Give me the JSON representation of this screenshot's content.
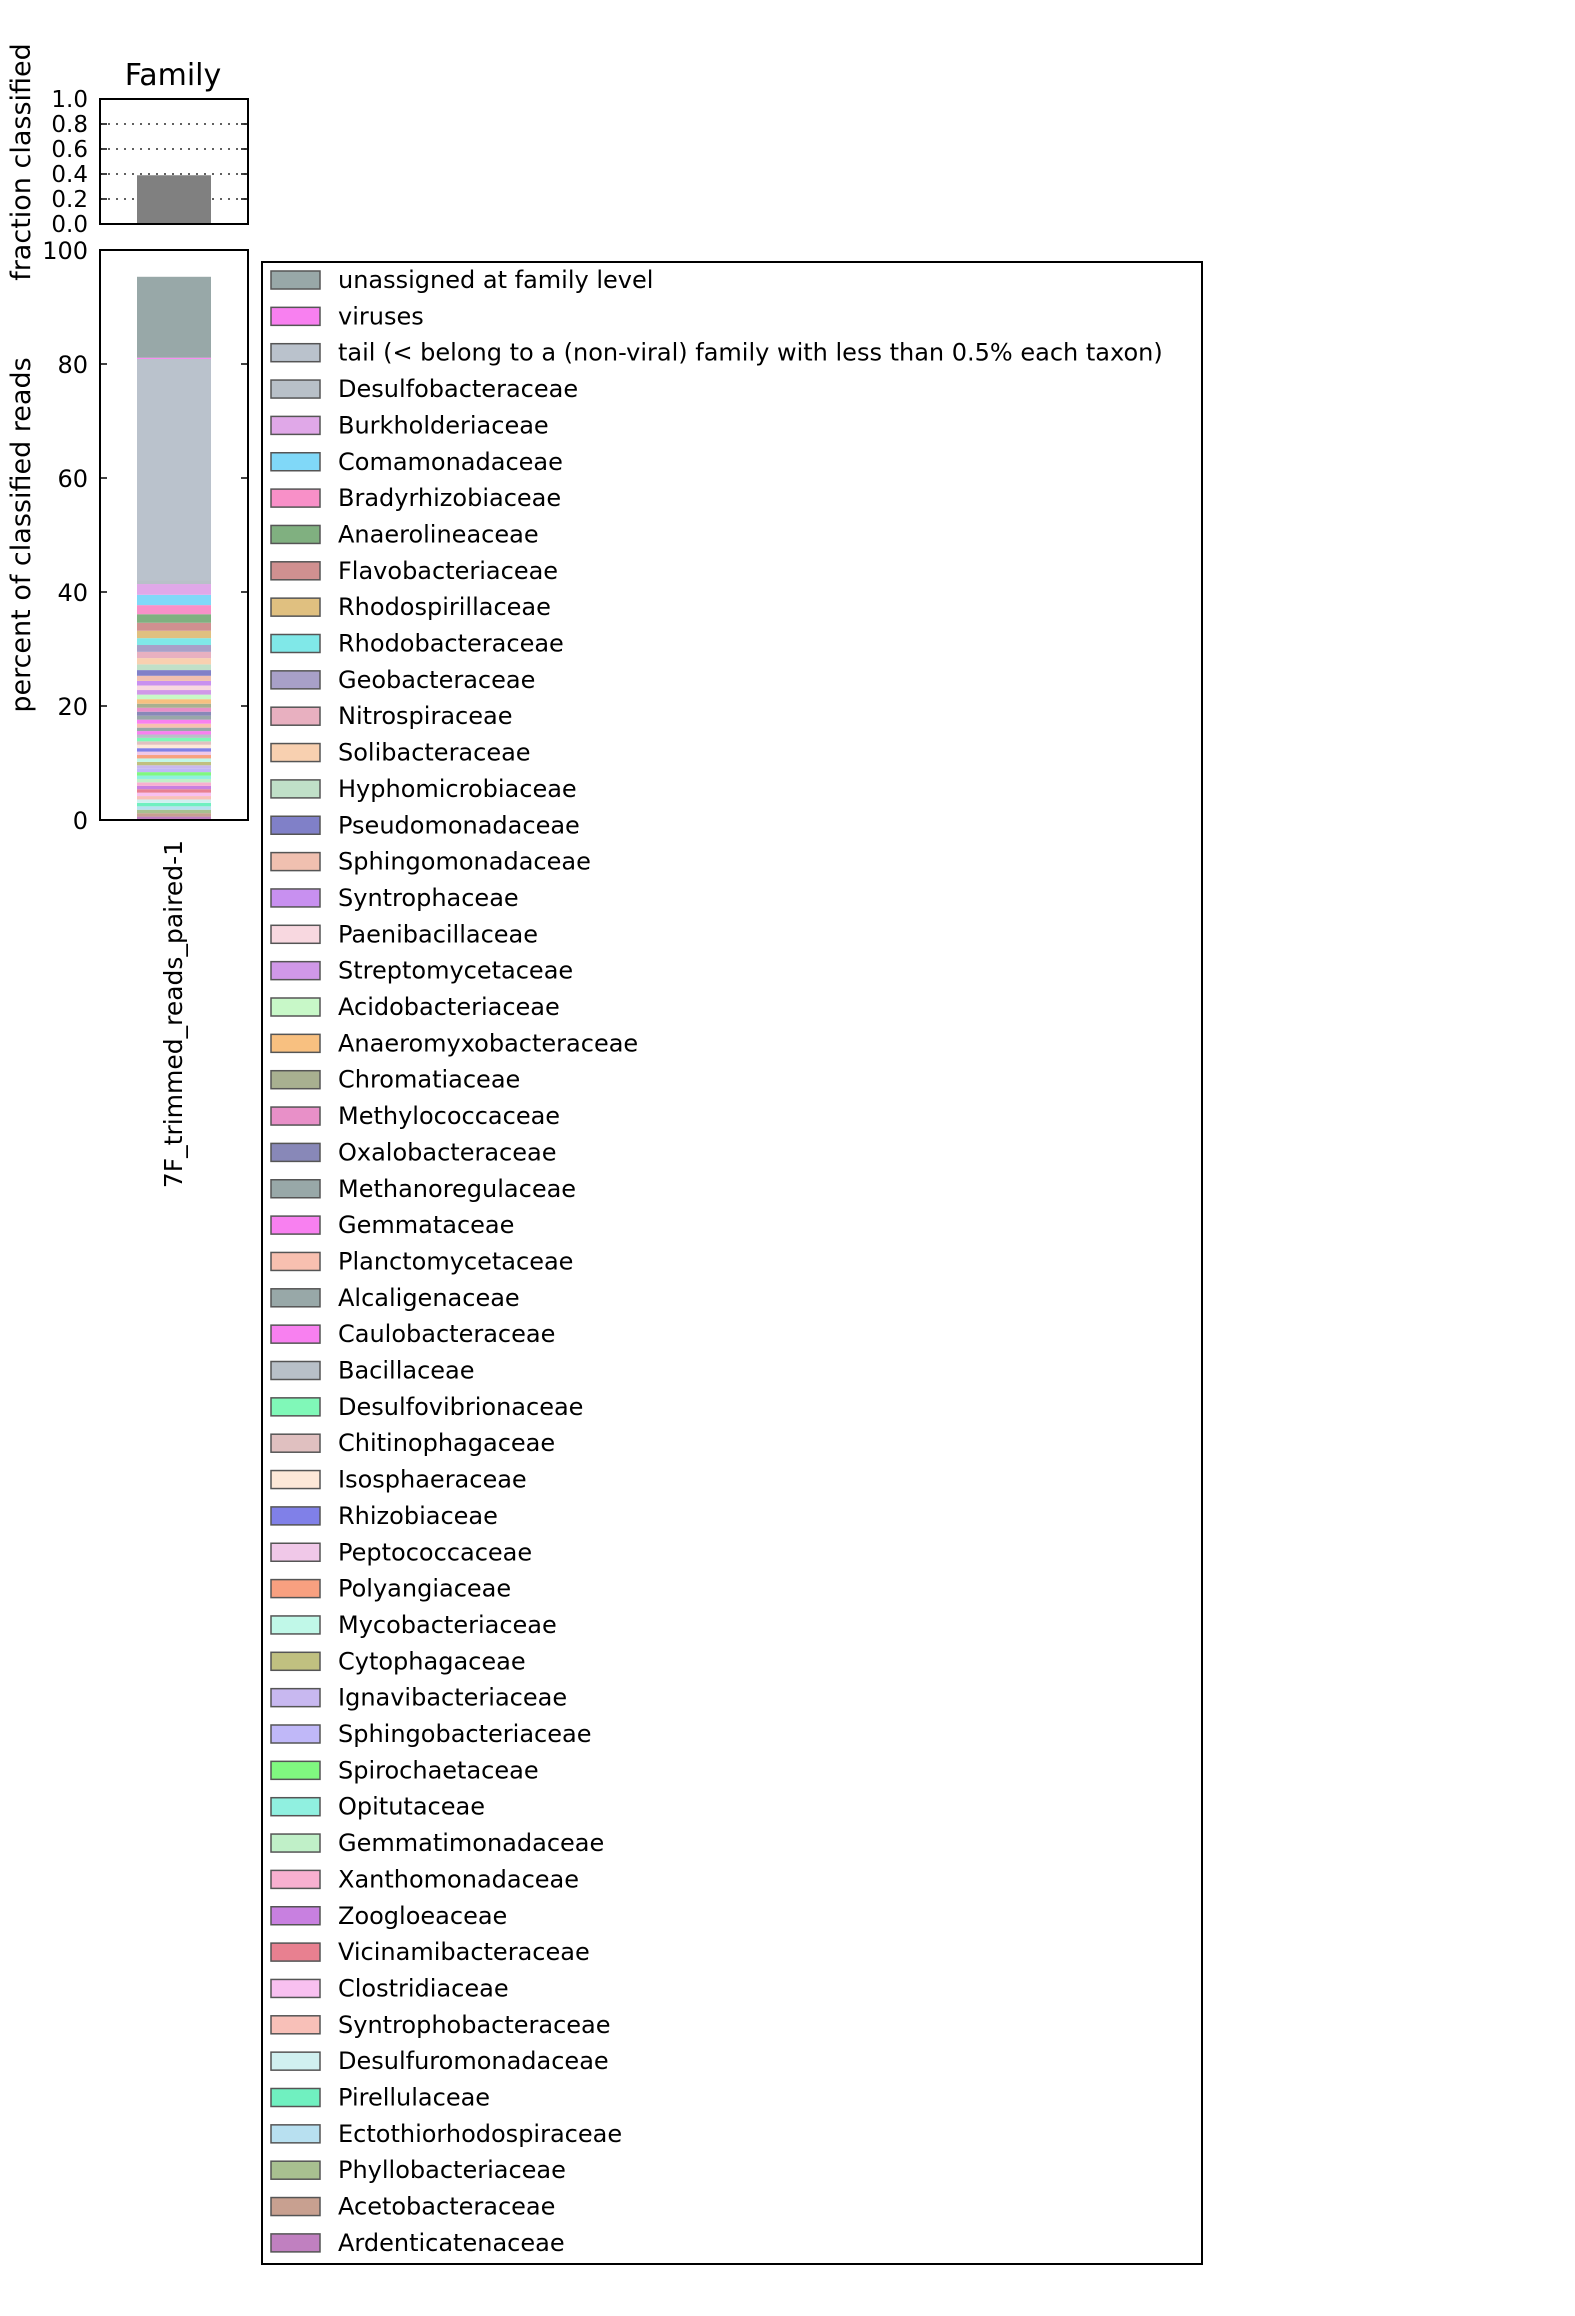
{
  "chart_data": [
    {
      "type": "bar",
      "title": "Family",
      "ylabel": "fraction classified",
      "ylim": [
        0.0,
        1.0
      ],
      "yticks": [
        "0.0",
        "0.2",
        "0.4",
        "0.6",
        "0.8",
        "1.0"
      ],
      "grid": true,
      "categories": [
        "7F_trimmed_reads_paired-1"
      ],
      "values": [
        0.39
      ],
      "bar_color": "#808080"
    },
    {
      "type": "bar",
      "stacked": true,
      "ylabel": "percent of classified reads",
      "ylim": [
        0,
        100
      ],
      "yticks": [
        "0",
        "20",
        "40",
        "60",
        "80",
        "100"
      ],
      "categories": [
        "7F_trimmed_reads_paired-1"
      ],
      "legend_position": "right",
      "series": [
        {
          "name": "Ardenticatenaceae",
          "color": "#c080c0",
          "values": [
            0.6
          ]
        },
        {
          "name": "Acetobacteraceae",
          "color": "#c8a090",
          "values": [
            0.6
          ]
        },
        {
          "name": "Phyllobacteriaceae",
          "color": "#a8c090",
          "values": [
            0.6
          ]
        },
        {
          "name": "Ectothiorhodospiraceae",
          "color": "#b8e0f0",
          "values": [
            0.6
          ]
        },
        {
          "name": "Pirellulaceae",
          "color": "#70f0c0",
          "values": [
            0.6
          ]
        },
        {
          "name": "Desulfuromonadaceae",
          "color": "#d0f0f0",
          "values": [
            0.6
          ]
        },
        {
          "name": "Syntrophobacteraceae",
          "color": "#f8c0b8",
          "values": [
            0.6
          ]
        },
        {
          "name": "Clostridiaceae",
          "color": "#f8c0f0",
          "values": [
            0.6
          ]
        },
        {
          "name": "Vicinamibacteraceae",
          "color": "#e88090",
          "values": [
            0.6
          ]
        },
        {
          "name": "Zoogloeaceae",
          "color": "#c880e0",
          "values": [
            0.6
          ]
        },
        {
          "name": "Xanthomonadaceae",
          "color": "#f8b0d0",
          "values": [
            0.6
          ]
        },
        {
          "name": "Gemmatimonadaceae",
          "color": "#c0f0c8",
          "values": [
            0.6
          ]
        },
        {
          "name": "Opitutaceae",
          "color": "#90f0e0",
          "values": [
            0.6
          ]
        },
        {
          "name": "Spirochaetaceae",
          "color": "#80f880",
          "values": [
            0.6
          ]
        },
        {
          "name": "Sphingobacteriaceae",
          "color": "#c0b8f8",
          "values": [
            0.6
          ]
        },
        {
          "name": "Ignavibacteriaceae",
          "color": "#c8b8f0",
          "values": [
            0.6
          ]
        },
        {
          "name": "Cytophagaceae",
          "color": "#c0c080",
          "values": [
            0.6
          ]
        },
        {
          "name": "Mycobacteriaceae",
          "color": "#c0f8e8",
          "values": [
            0.6
          ]
        },
        {
          "name": "Polyangiaceae",
          "color": "#f8a080",
          "values": [
            0.6
          ]
        },
        {
          "name": "Peptococcaceae",
          "color": "#f0c8e8",
          "values": [
            0.6
          ]
        },
        {
          "name": "Rhizobiaceae",
          "color": "#8080e8",
          "values": [
            0.6
          ]
        },
        {
          "name": "Isosphaeraceae",
          "color": "#fde8d8",
          "values": [
            0.6
          ]
        },
        {
          "name": "Chitinophagaceae",
          "color": "#e0c0c0",
          "values": [
            0.6
          ]
        },
        {
          "name": "Desulfovibrionaceae",
          "color": "#80f8b8",
          "values": [
            0.6
          ]
        },
        {
          "name": "Bacillaceae",
          "color": "#b8c0c8",
          "values": [
            0.6
          ]
        },
        {
          "name": "Caulobacteraceae",
          "color": "#f880f0",
          "values": [
            0.6
          ]
        },
        {
          "name": "Alcaligenaceae",
          "color": "#98a8a8",
          "values": [
            0.6
          ]
        },
        {
          "name": "Planctomycetaceae",
          "color": "#f8c0b0",
          "values": [
            0.7
          ]
        },
        {
          "name": "Gemmataceae",
          "color": "#f880f0",
          "values": [
            0.7
          ]
        },
        {
          "name": "Methanoregulaceae",
          "color": "#98a8a8",
          "values": [
            0.7
          ]
        },
        {
          "name": "Oxalobacteraceae",
          "color": "#8888b8",
          "values": [
            0.7
          ]
        },
        {
          "name": "Methylococcaceae",
          "color": "#e890c8",
          "values": [
            0.7
          ]
        },
        {
          "name": "Chromatiaceae",
          "color": "#a8b090",
          "values": [
            0.7
          ]
        },
        {
          "name": "Anaeromyxobacteraceae",
          "color": "#f8c080",
          "values": [
            0.8
          ]
        },
        {
          "name": "Acidobacteriaceae",
          "color": "#c8f8c8",
          "values": [
            0.8
          ]
        },
        {
          "name": "Streptomycetaceae",
          "color": "#d098e8",
          "values": [
            0.8
          ]
        },
        {
          "name": "Paenibacillaceae",
          "color": "#f8d8e0",
          "values": [
            0.8
          ]
        },
        {
          "name": "Syntrophaceae",
          "color": "#c890f0",
          "values": [
            0.8
          ]
        },
        {
          "name": "Sphingomonadaceae",
          "color": "#f0c0b0",
          "values": [
            0.9
          ]
        },
        {
          "name": "Pseudomonadaceae",
          "color": "#8080c8",
          "values": [
            1.0
          ]
        },
        {
          "name": "Hyphomicrobiaceae",
          "color": "#c0e0c8",
          "values": [
            1.0
          ]
        },
        {
          "name": "Solibacteraceae",
          "color": "#f8d0b0",
          "values": [
            1.1
          ]
        },
        {
          "name": "Nitrospiraceae",
          "color": "#e8b0c0",
          "values": [
            1.1
          ]
        },
        {
          "name": "Geobacteraceae",
          "color": "#a8a0c8",
          "values": [
            1.2
          ]
        },
        {
          "name": "Rhodobacteraceae",
          "color": "#80e8e8",
          "values": [
            1.2
          ]
        },
        {
          "name": "Rhodospirillaceae",
          "color": "#e0c080",
          "values": [
            1.3
          ]
        },
        {
          "name": "Flavobacteriaceae",
          "color": "#d09090",
          "values": [
            1.4
          ]
        },
        {
          "name": "Anaerolineaceae",
          "color": "#80b080",
          "values": [
            1.5
          ]
        },
        {
          "name": "Bradyrhizobiaceae",
          "color": "#f890c8",
          "values": [
            1.6
          ]
        },
        {
          "name": "Comamonadaceae",
          "color": "#80d8f8",
          "values": [
            1.8
          ]
        },
        {
          "name": "Burkholderiaceae",
          "color": "#e0a8e8",
          "values": [
            1.9
          ]
        },
        {
          "name": "Desulfobacteraceae",
          "color": "#b8c0c8",
          "values": [
            0.7
          ]
        },
        {
          "name": "tail (< belong to a (non-viral) family with less than 0.5% each taxon)",
          "color": "#bac2cc",
          "values": [
            38.8
          ]
        },
        {
          "name": "viruses",
          "color": "#f880f0",
          "values": [
            0.2
          ]
        },
        {
          "name": "unassigned at family level",
          "color": "#98a8a8",
          "values": [
            14.2
          ]
        }
      ],
      "legend_order": [
        "unassigned at family level",
        "viruses",
        "tail (< belong to a (non-viral) family with less than 0.5% each taxon)",
        "Desulfobacteraceae",
        "Burkholderiaceae",
        "Comamonadaceae",
        "Bradyrhizobiaceae",
        "Anaerolineaceae",
        "Flavobacteriaceae",
        "Rhodospirillaceae",
        "Rhodobacteraceae",
        "Geobacteraceae",
        "Nitrospiraceae",
        "Solibacteraceae",
        "Hyphomicrobiaceae",
        "Pseudomonadaceae",
        "Sphingomonadaceae",
        "Syntrophaceae",
        "Paenibacillaceae",
        "Streptomycetaceae",
        "Acidobacteriaceae",
        "Anaeromyxobacteraceae",
        "Chromatiaceae",
        "Methylococcaceae",
        "Oxalobacteraceae",
        "Methanoregulaceae",
        "Gemmataceae",
        "Planctomycetaceae",
        "Alcaligenaceae",
        "Caulobacteraceae",
        "Bacillaceae",
        "Desulfovibrionaceae",
        "Chitinophagaceae",
        "Isosphaeraceae",
        "Rhizobiaceae",
        "Peptococcaceae",
        "Polyangiaceae",
        "Mycobacteriaceae",
        "Cytophagaceae",
        "Ignavibacteriaceae",
        "Sphingobacteriaceae",
        "Spirochaetaceae",
        "Opitutaceae",
        "Gemmatimonadaceae",
        "Xanthomonadaceae",
        "Zoogloeaceae",
        "Vicinamibacteraceae",
        "Clostridiaceae",
        "Syntrophobacteraceae",
        "Desulfuromonadaceae",
        "Pirellulaceae",
        "Ectothiorhodospiraceae",
        "Phyllobacteriaceae",
        "Acetobacteraceae",
        "Ardenticatenaceae"
      ]
    }
  ]
}
